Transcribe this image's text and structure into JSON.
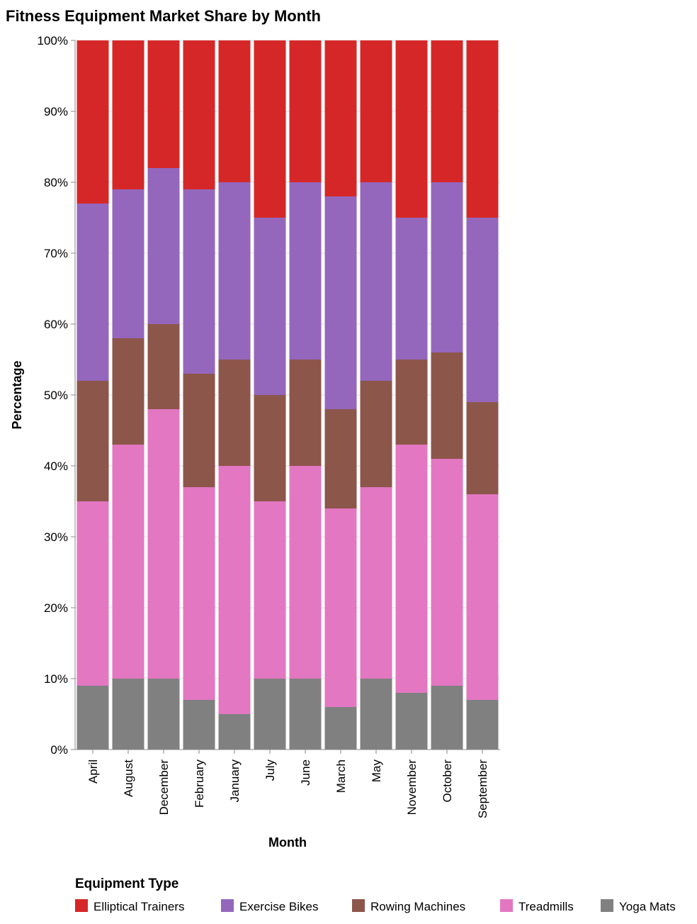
{
  "chart_data": {
    "type": "bar",
    "stacked": true,
    "normalized": true,
    "title": "Fitness Equipment Market Share by Month",
    "xlabel": "Month",
    "ylabel": "Percentage",
    "ylim": [
      0,
      100
    ],
    "y_ticks": [
      "0%",
      "10%",
      "20%",
      "30%",
      "40%",
      "50%",
      "60%",
      "70%",
      "80%",
      "90%",
      "100%"
    ],
    "grid": "horizontal",
    "legend_title": "Equipment Type",
    "legend_position": "bottom",
    "categories": [
      "April",
      "August",
      "December",
      "February",
      "January",
      "July",
      "June",
      "March",
      "May",
      "November",
      "October",
      "September"
    ],
    "series": [
      {
        "name": "Yoga Mats",
        "color": "#808080",
        "values": [
          9,
          10,
          10,
          7,
          5,
          10,
          10,
          6,
          10,
          8,
          9,
          7
        ]
      },
      {
        "name": "Treadmills",
        "color": "#e377c2",
        "values": [
          26,
          33,
          38,
          30,
          35,
          25,
          30,
          28,
          27,
          35,
          32,
          29
        ]
      },
      {
        "name": "Rowing Machines",
        "color": "#8c564b",
        "values": [
          17,
          15,
          12,
          16,
          15,
          15,
          15,
          14,
          15,
          12,
          15,
          13
        ]
      },
      {
        "name": "Exercise Bikes",
        "color": "#9467bd",
        "values": [
          25,
          21,
          22,
          26,
          25,
          25,
          25,
          30,
          28,
          20,
          24,
          26
        ]
      },
      {
        "name": "Elliptical Trainers",
        "color": "#d62728",
        "values": [
          23,
          21,
          18,
          21,
          20,
          25,
          20,
          22,
          20,
          25,
          20,
          25
        ]
      }
    ],
    "legend_order": [
      "Elliptical Trainers",
      "Exercise Bikes",
      "Rowing Machines",
      "Treadmills",
      "Yoga Mats"
    ]
  }
}
